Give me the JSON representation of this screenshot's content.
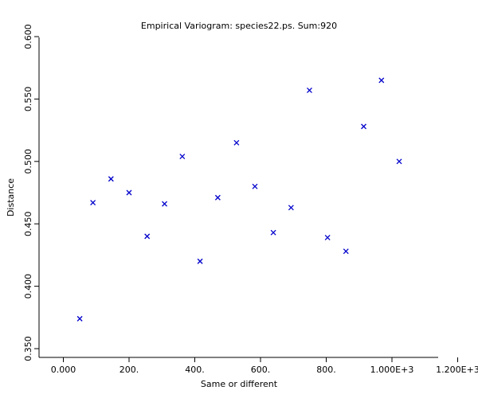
{
  "chart_data": {
    "type": "scatter",
    "title": "Empirical Variogram: species22.ps. Sum:920",
    "xlabel": "Same or different",
    "ylabel": "Distance",
    "xlim": [
      -70,
      1200
    ],
    "ylim": [
      0.345,
      0.6
    ],
    "x_ticks": [
      {
        "value": 0,
        "label": "0.000"
      },
      {
        "value": 200,
        "label": "200."
      },
      {
        "value": 400,
        "label": "400."
      },
      {
        "value": 600,
        "label": "600."
      },
      {
        "value": 800,
        "label": "800."
      },
      {
        "value": 1000,
        "label": "1.000E+3"
      },
      {
        "value": 1200,
        "label": "1.200E+3"
      }
    ],
    "y_ticks": [
      {
        "value": 0.35,
        "label": "0.350"
      },
      {
        "value": 0.4,
        "label": "0.400"
      },
      {
        "value": 0.45,
        "label": "0.450"
      },
      {
        "value": 0.5,
        "label": "0.500"
      },
      {
        "value": 0.55,
        "label": "0.550"
      },
      {
        "value": 0.6,
        "label": "0.600"
      }
    ],
    "marker_color": "#0000cc",
    "marker": "x",
    "grid": false,
    "points": [
      {
        "x": 50,
        "y": 0.374
      },
      {
        "x": 90,
        "y": 0.467
      },
      {
        "x": 145,
        "y": 0.486
      },
      {
        "x": 200,
        "y": 0.475
      },
      {
        "x": 255,
        "y": 0.44
      },
      {
        "x": 308,
        "y": 0.466
      },
      {
        "x": 362,
        "y": 0.504
      },
      {
        "x": 416,
        "y": 0.42
      },
      {
        "x": 470,
        "y": 0.471
      },
      {
        "x": 527,
        "y": 0.515
      },
      {
        "x": 583,
        "y": 0.48
      },
      {
        "x": 639,
        "y": 0.443
      },
      {
        "x": 693,
        "y": 0.463
      },
      {
        "x": 749,
        "y": 0.557
      },
      {
        "x": 804,
        "y": 0.439
      },
      {
        "x": 860,
        "y": 0.428
      },
      {
        "x": 914,
        "y": 0.528
      },
      {
        "x": 968,
        "y": 0.565
      },
      {
        "x": 1022,
        "y": 0.5
      }
    ]
  }
}
